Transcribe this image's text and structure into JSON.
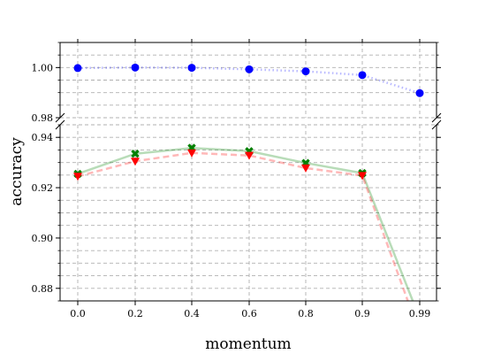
{
  "chart_data": {
    "type": "line",
    "layout": "broken-y-axis",
    "xlabel": "momentum",
    "ylabel": "accuracy",
    "categories": [
      "0.0",
      "0.2",
      "0.4",
      "0.6",
      "0.8",
      "0.9",
      "0.99"
    ],
    "grid": true,
    "grid_style": "dashed",
    "panels": {
      "top": {
        "ylim": [
          0.98,
          1.01
        ],
        "yticks": [
          "0.98",
          "1.00"
        ],
        "minor_step": 0.005
      },
      "bottom": {
        "ylim": [
          0.875,
          0.945
        ],
        "yticks": [
          "0.88",
          "0.90",
          "0.92",
          "0.94"
        ],
        "minor_step": 0.005
      }
    },
    "series": [
      {
        "values": [
          0.9998,
          1.0,
          0.9999,
          0.9993,
          0.9985,
          0.997,
          0.9898
        ],
        "color": "#0000ff",
        "marker": "circle",
        "line_style": "dotted",
        "panel": "top"
      },
      {
        "values": [
          0.9255,
          0.9335,
          0.9358,
          0.9345,
          0.9298,
          0.9258,
          0.868
        ],
        "color": "#008000",
        "marker": "x",
        "line_style": "solid",
        "panel": "bottom"
      },
      {
        "values": [
          0.9245,
          0.9305,
          0.9338,
          0.9328,
          0.9278,
          0.9248,
          0.862
        ],
        "color": "#ff0000",
        "marker": "triangle-down",
        "line_style": "dashed",
        "panel": "bottom"
      }
    ]
  }
}
